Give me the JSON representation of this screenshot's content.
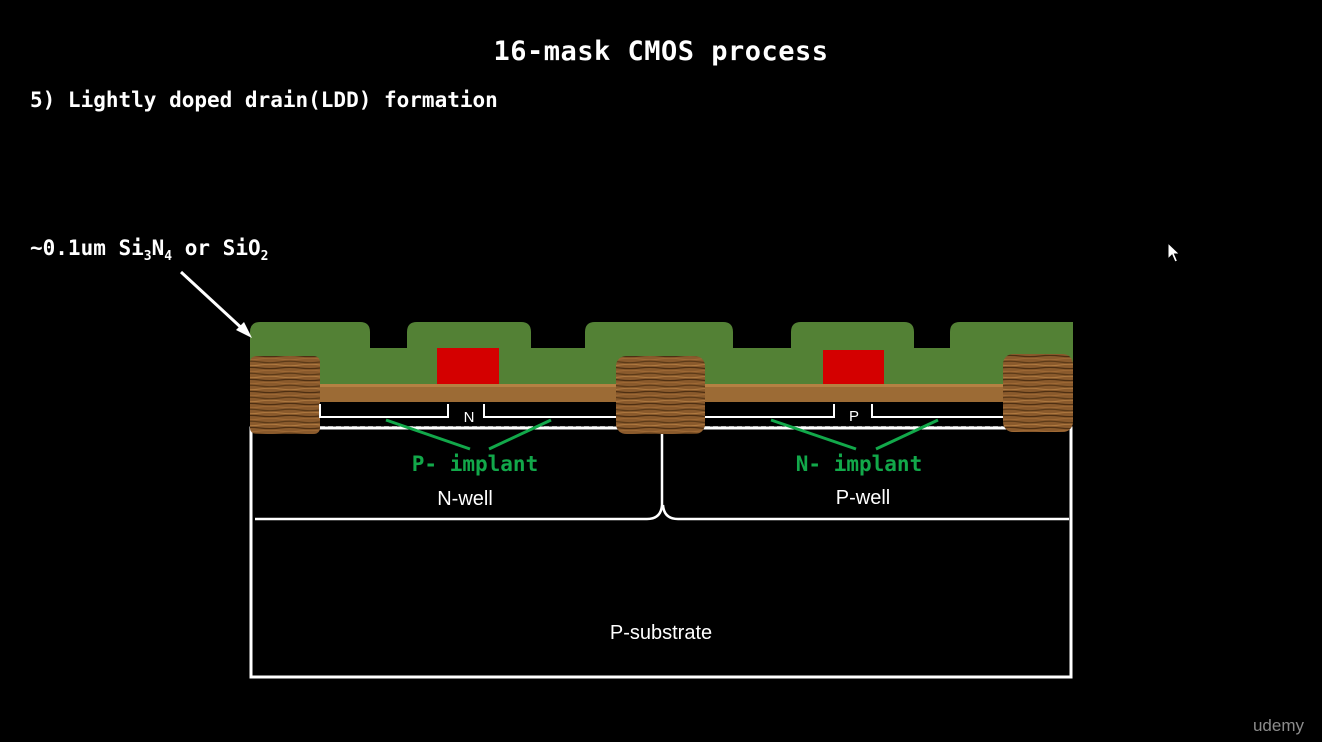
{
  "slide": {
    "title": "16-mask CMOS process",
    "step": "5) Lightly doped drain(LDD) formation",
    "layer_label": {
      "prefix": "~0.1um Si",
      "sub1": "3",
      "mid1": "N",
      "sub2": "4",
      "mid2": " or SiO",
      "sub3": "2"
    }
  },
  "diagram": {
    "implant_left": "P- implant",
    "implant_right": "N- implant",
    "gate_left_label": "N",
    "gate_right_label": "P",
    "well_left": "N-well",
    "well_right": "P-well",
    "substrate": "P-substrate"
  },
  "colors": {
    "background": "#000000",
    "spacer_layer": "#538135",
    "gate": "#d40000",
    "oxide": "#9c6b35",
    "implant_text": "#12a84a",
    "text": "#ffffff"
  },
  "watermark": "udemy"
}
